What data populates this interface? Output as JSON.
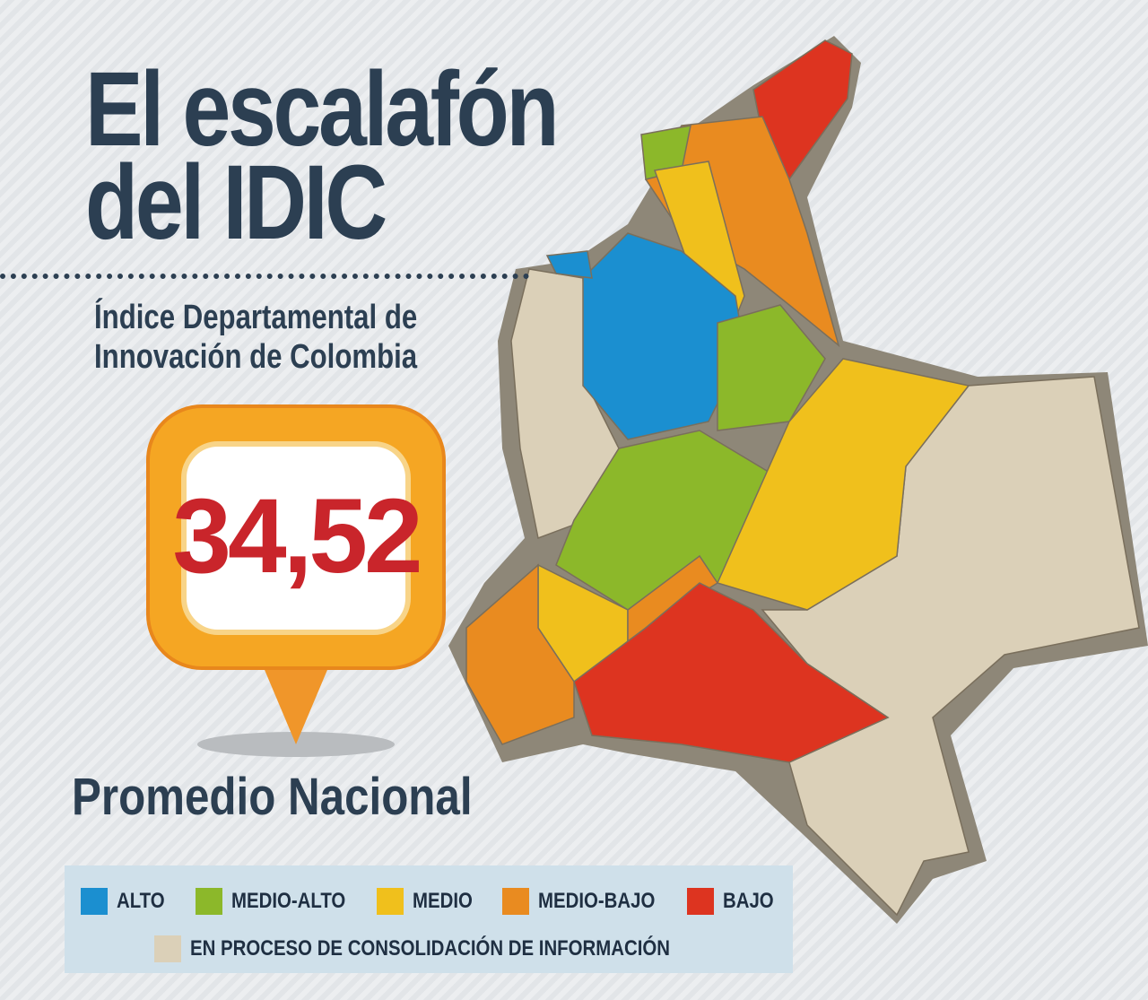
{
  "header": {
    "title_line1": "El escalafón",
    "title_line2": "del IDIC",
    "subtitle_line1": "Índice Departamental de",
    "subtitle_line2": "Innovación de Colombia"
  },
  "badge": {
    "value": "34,52",
    "caption": "Promedio Nacional"
  },
  "legend": {
    "items": [
      {
        "label": "ALTO",
        "color": "#1b8fd0"
      },
      {
        "label": "MEDIO-ALTO",
        "color": "#8cb82a"
      },
      {
        "label": "MEDIO",
        "color": "#f0c01c"
      },
      {
        "label": "MEDIO-BAJO",
        "color": "#e98b20"
      },
      {
        "label": "BAJO",
        "color": "#dd3420"
      },
      {
        "label": "EN PROCESO DE CONSOLIDACIÓN DE INFORMACIÓN",
        "color": "#dbd0b8"
      }
    ]
  }
}
